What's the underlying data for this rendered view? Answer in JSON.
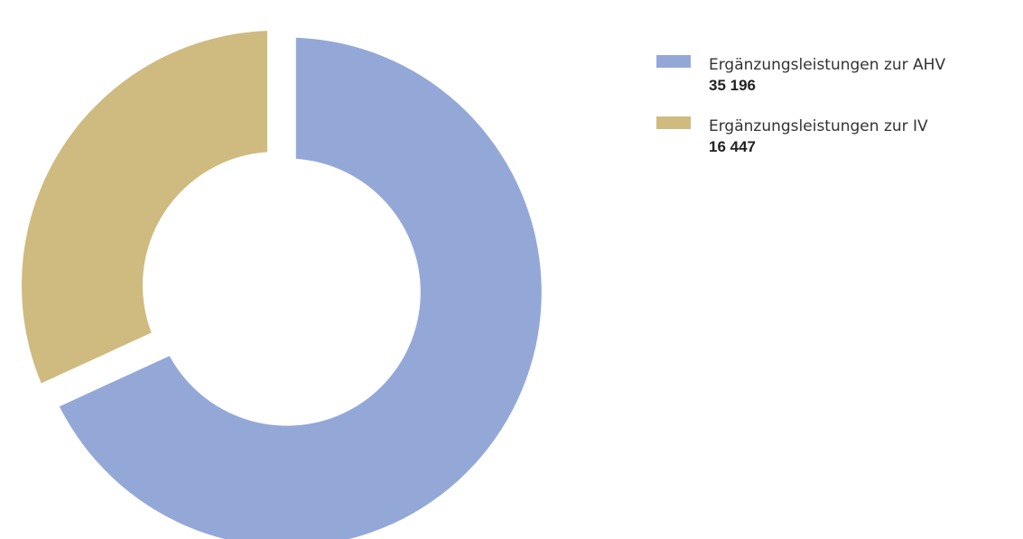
{
  "chart_data": {
    "type": "pie",
    "style": "donut",
    "title": "",
    "legend_position": "right",
    "slices": [
      {
        "label": "Ergänzungsleistungen zur AHV",
        "value": 35196,
        "value_label": "35 196",
        "color": "#94a8d8",
        "exploded": true
      },
      {
        "label": "Ergänzungsleistungen zur IV",
        "value": 16447,
        "value_label": "16 447",
        "color": "#cfbb7f",
        "exploded": false
      }
    ]
  }
}
